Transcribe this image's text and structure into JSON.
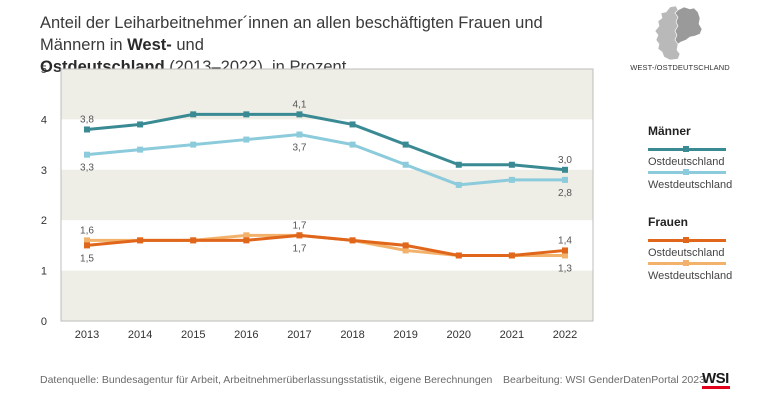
{
  "title": {
    "part1": "Anteil der Leiharbeitnehmer´innen an allen beschäftigten Frauen und Männern in ",
    "bold1": "West-",
    "part2": " und",
    "bold2": "Ostdeutschland",
    "part3": " (2013–2022), in Prozent"
  },
  "map_caption": "WEST-/OSTDEUTSCHLAND",
  "legend": {
    "men_title": "Männer",
    "men_east": "Ostdeutschland",
    "men_west": "Westdeutschland",
    "women_title": "Frauen",
    "women_east": "Ostdeutschland",
    "women_west": "Westdeutschland"
  },
  "footer": {
    "source": "Datenquelle: Bundesagentur für Arbeit, Arbeitnehmerüberlassungsstatistik, eigene Berechnungen",
    "credit": "Bearbeitung: WSI GenderDatenPortal 2023",
    "logo": "WSI"
  },
  "colors": {
    "men_east": "#3a8a94",
    "men_west": "#8ccbdb",
    "women_east": "#e0661b",
    "women_west": "#f2b26b",
    "band": "#eeede6",
    "red": "#e2001a"
  },
  "chart_data": {
    "type": "line",
    "x": [
      2013,
      2014,
      2015,
      2016,
      2017,
      2018,
      2019,
      2020,
      2021,
      2022
    ],
    "ylim": [
      0,
      5
    ],
    "yticks": [
      0,
      1,
      2,
      3,
      4,
      5
    ],
    "grid": "alternating horizontal bands",
    "legend": "right",
    "series": [
      {
        "key": "men_east",
        "group": "Männer",
        "name": "Ostdeutschland",
        "values": [
          3.8,
          3.9,
          4.1,
          4.1,
          4.1,
          3.9,
          3.5,
          3.1,
          3.1,
          3.0
        ]
      },
      {
        "key": "men_west",
        "group": "Männer",
        "name": "Westdeutschland",
        "values": [
          3.3,
          3.4,
          3.5,
          3.6,
          3.7,
          3.5,
          3.1,
          2.7,
          2.8,
          2.8
        ]
      },
      {
        "key": "women_east",
        "group": "Frauen",
        "name": "Ostdeutschland",
        "values": [
          1.5,
          1.6,
          1.6,
          1.6,
          1.7,
          1.6,
          1.5,
          1.3,
          1.3,
          1.4
        ]
      },
      {
        "key": "women_west",
        "group": "Frauen",
        "name": "Westdeutschland",
        "values": [
          1.6,
          1.6,
          1.6,
          1.7,
          1.7,
          1.6,
          1.4,
          1.3,
          1.3,
          1.3
        ]
      }
    ],
    "annotations": [
      {
        "x": 2013,
        "y": 3.8,
        "text": "3,8",
        "pos": "above"
      },
      {
        "x": 2013,
        "y": 3.3,
        "text": "3,3",
        "pos": "below"
      },
      {
        "x": 2017,
        "y": 4.1,
        "text": "4,1",
        "pos": "above"
      },
      {
        "x": 2017,
        "y": 3.7,
        "text": "3,7",
        "pos": "below"
      },
      {
        "x": 2022,
        "y": 3.0,
        "text": "3,0",
        "pos": "above"
      },
      {
        "x": 2022,
        "y": 2.8,
        "text": "2,8",
        "pos": "below"
      },
      {
        "x": 2013,
        "y": 1.6,
        "text": "1,6",
        "pos": "above"
      },
      {
        "x": 2013,
        "y": 1.5,
        "text": "1,5",
        "pos": "below"
      },
      {
        "x": 2017,
        "y": 1.7,
        "text": "1,7",
        "pos": "above"
      },
      {
        "x": 2017,
        "y": 1.7,
        "text": "1,7",
        "pos": "below"
      },
      {
        "x": 2022,
        "y": 1.4,
        "text": "1,4",
        "pos": "above"
      },
      {
        "x": 2022,
        "y": 1.3,
        "text": "1,3",
        "pos": "below"
      }
    ]
  }
}
